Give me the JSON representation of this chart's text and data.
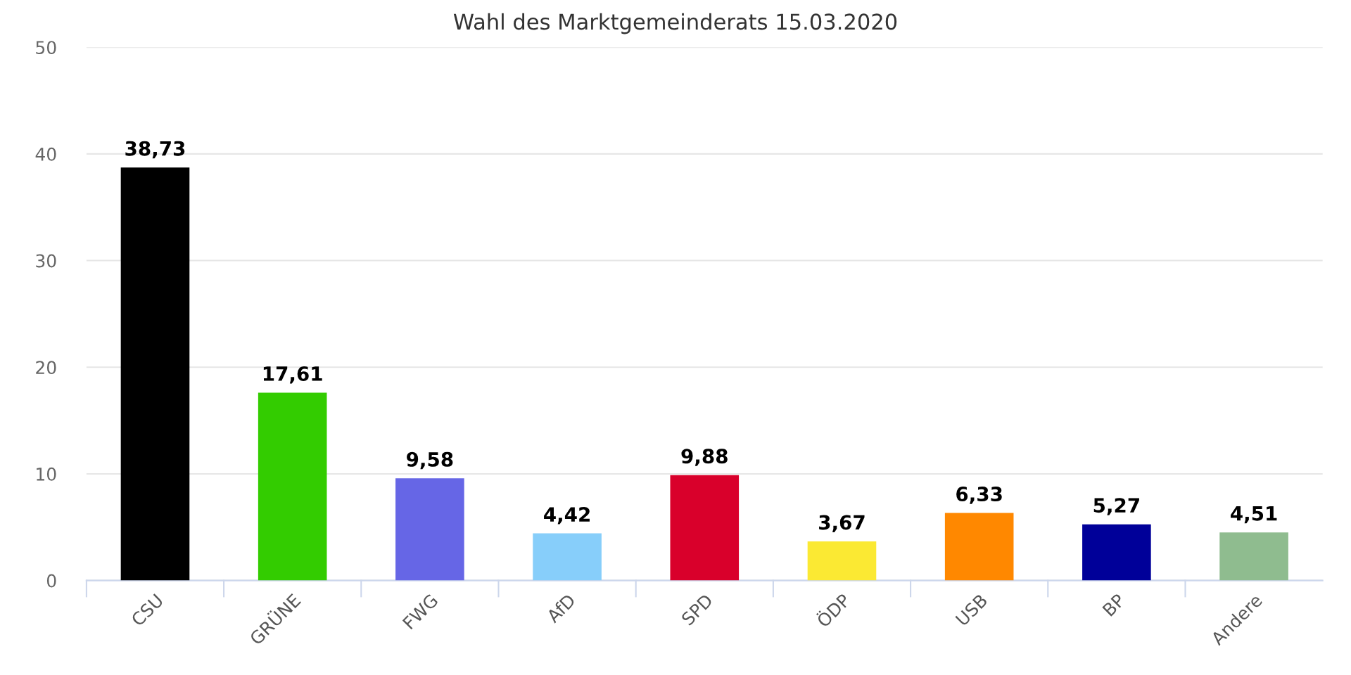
{
  "chart_data": {
    "type": "bar",
    "title": "Wahl des Marktgemeinderats 15.03.2020",
    "categories": [
      "CSU",
      "GRÜNE",
      "FWG",
      "AfD",
      "SPD",
      "ÖDP",
      "USB",
      "BP",
      "Andere"
    ],
    "values": [
      38.73,
      17.61,
      9.58,
      4.42,
      9.88,
      3.67,
      6.33,
      5.27,
      4.51
    ],
    "value_labels": [
      "38,73",
      "17,61",
      "9,58",
      "4,42",
      "9,88",
      "3,67",
      "6,33",
      "5,27",
      "4,51"
    ],
    "colors": [
      "#000000",
      "#33cc00",
      "#6666e6",
      "#87cefa",
      "#d9002b",
      "#fbe933",
      "#ff8800",
      "#000099",
      "#8fbc8f"
    ],
    "ylim": [
      0,
      50
    ],
    "yticks": [
      0,
      10,
      20,
      30,
      40,
      50
    ],
    "grid": "y",
    "legend": false
  }
}
